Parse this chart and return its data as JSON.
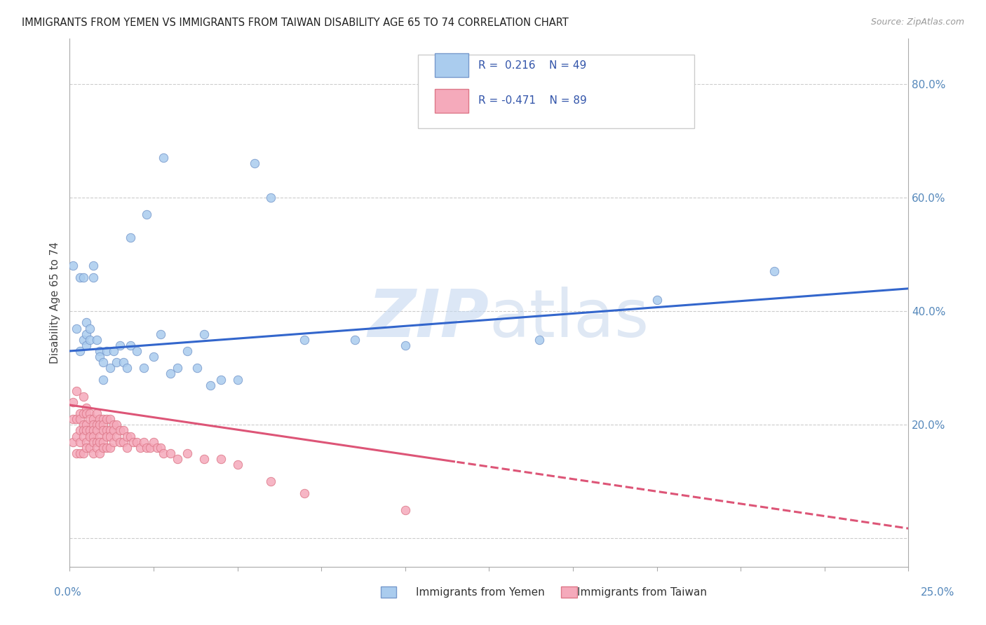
{
  "title": "IMMIGRANTS FROM YEMEN VS IMMIGRANTS FROM TAIWAN DISABILITY AGE 65 TO 74 CORRELATION CHART",
  "source": "Source: ZipAtlas.com",
  "ylabel": "Disability Age 65 to 74",
  "yticks": [
    0.0,
    0.2,
    0.4,
    0.6,
    0.8
  ],
  "ytick_labels": [
    "",
    "20.0%",
    "40.0%",
    "60.0%",
    "80.0%"
  ],
  "xlim": [
    0.0,
    0.25
  ],
  "ylim": [
    -0.05,
    0.88
  ],
  "legend1_R": "0.216",
  "legend1_N": "49",
  "legend2_R": "-0.471",
  "legend2_N": "89",
  "watermark": "ZIPatlas",
  "series1_color": "#aaccee",
  "series1_edge": "#7799cc",
  "series2_color": "#f5aabb",
  "series2_edge": "#dd7788",
  "line1_color": "#3366cc",
  "line2_color": "#dd5577",
  "background_color": "#ffffff",
  "grid_color": "#cccccc",
  "tick_color": "#5588bb",
  "series1_x": [
    0.001,
    0.002,
    0.003,
    0.003,
    0.004,
    0.004,
    0.005,
    0.005,
    0.005,
    0.006,
    0.006,
    0.007,
    0.007,
    0.008,
    0.009,
    0.009,
    0.01,
    0.01,
    0.011,
    0.012,
    0.013,
    0.014,
    0.015,
    0.016,
    0.017,
    0.018,
    0.018,
    0.02,
    0.022,
    0.023,
    0.025,
    0.027,
    0.028,
    0.03,
    0.032,
    0.035,
    0.038,
    0.04,
    0.042,
    0.045,
    0.05,
    0.055,
    0.06,
    0.07,
    0.085,
    0.1,
    0.14,
    0.175,
    0.21
  ],
  "series1_y": [
    0.48,
    0.37,
    0.33,
    0.46,
    0.35,
    0.46,
    0.38,
    0.36,
    0.34,
    0.37,
    0.35,
    0.48,
    0.46,
    0.35,
    0.33,
    0.32,
    0.31,
    0.28,
    0.33,
    0.3,
    0.33,
    0.31,
    0.34,
    0.31,
    0.3,
    0.34,
    0.53,
    0.33,
    0.3,
    0.57,
    0.32,
    0.36,
    0.67,
    0.29,
    0.3,
    0.33,
    0.3,
    0.36,
    0.27,
    0.28,
    0.28,
    0.66,
    0.6,
    0.35,
    0.35,
    0.34,
    0.35,
    0.42,
    0.47
  ],
  "series2_x": [
    0.001,
    0.001,
    0.001,
    0.002,
    0.002,
    0.002,
    0.002,
    0.003,
    0.003,
    0.003,
    0.003,
    0.003,
    0.004,
    0.004,
    0.004,
    0.004,
    0.004,
    0.004,
    0.005,
    0.005,
    0.005,
    0.005,
    0.005,
    0.005,
    0.006,
    0.006,
    0.006,
    0.006,
    0.006,
    0.007,
    0.007,
    0.007,
    0.007,
    0.007,
    0.007,
    0.008,
    0.008,
    0.008,
    0.008,
    0.008,
    0.009,
    0.009,
    0.009,
    0.009,
    0.009,
    0.01,
    0.01,
    0.01,
    0.01,
    0.01,
    0.011,
    0.011,
    0.011,
    0.011,
    0.012,
    0.012,
    0.012,
    0.012,
    0.013,
    0.013,
    0.013,
    0.014,
    0.014,
    0.015,
    0.015,
    0.016,
    0.016,
    0.017,
    0.017,
    0.018,
    0.019,
    0.02,
    0.021,
    0.022,
    0.023,
    0.024,
    0.025,
    0.026,
    0.027,
    0.028,
    0.03,
    0.032,
    0.035,
    0.04,
    0.045,
    0.05,
    0.06,
    0.07,
    0.1
  ],
  "series2_y": [
    0.24,
    0.21,
    0.17,
    0.26,
    0.21,
    0.18,
    0.15,
    0.22,
    0.21,
    0.19,
    0.17,
    0.15,
    0.25,
    0.22,
    0.2,
    0.19,
    0.18,
    0.15,
    0.23,
    0.22,
    0.2,
    0.19,
    0.17,
    0.16,
    0.22,
    0.21,
    0.19,
    0.18,
    0.16,
    0.21,
    0.2,
    0.19,
    0.18,
    0.17,
    0.15,
    0.22,
    0.2,
    0.19,
    0.17,
    0.16,
    0.21,
    0.2,
    0.18,
    0.17,
    0.15,
    0.21,
    0.2,
    0.19,
    0.17,
    0.16,
    0.21,
    0.19,
    0.18,
    0.16,
    0.21,
    0.19,
    0.18,
    0.16,
    0.2,
    0.19,
    0.17,
    0.2,
    0.18,
    0.19,
    0.17,
    0.19,
    0.17,
    0.18,
    0.16,
    0.18,
    0.17,
    0.17,
    0.16,
    0.17,
    0.16,
    0.16,
    0.17,
    0.16,
    0.16,
    0.15,
    0.15,
    0.14,
    0.15,
    0.14,
    0.14,
    0.13,
    0.1,
    0.08,
    0.05
  ]
}
